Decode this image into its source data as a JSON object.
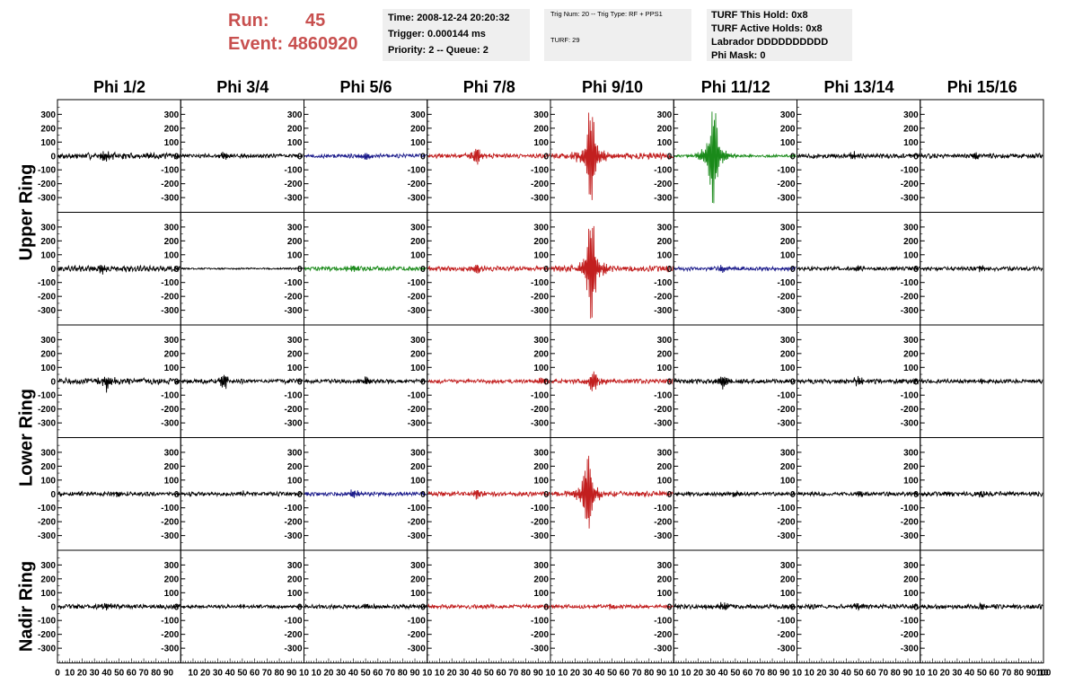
{
  "header": {
    "run_label": "Run:",
    "run_value": "45",
    "event_label": "Event:",
    "event_value": "4860920",
    "info1": [
      "Time: 2008-12-24 20:20:32",
      "Trigger: 0.000144 ms",
      "Priority: 2 -- Queue: 2"
    ],
    "info2": [
      "Trig Num: 20 -- Trig Type: RF + PPS1",
      "TURF: 29"
    ],
    "info3": [
      "TURF This Hold: 0x8",
      "TURF Active Holds: 0x8",
      "Labrador DDDDDDDDDD",
      "Phi Mask: 0"
    ]
  },
  "columns": [
    "Phi 1/2",
    "Phi 3/4",
    "Phi 5/6",
    "Phi 7/8",
    "Phi 9/10",
    "Phi 11/12",
    "Phi 13/14",
    "Phi 15/16"
  ],
  "rows": [
    {
      "label": "Upper Ring",
      "span": [
        0,
        1
      ]
    },
    {
      "label": "Lower Ring",
      "span": [
        2,
        3
      ]
    },
    {
      "label": "Nadir Ring",
      "span": [
        4,
        4
      ]
    }
  ],
  "colors": {
    "black": "#000000",
    "red": "#c21f1f",
    "blue": "#1a1a8a",
    "green": "#1a8a1a",
    "header_red": "#c8504f",
    "box_bg": "#efefef"
  },
  "chart_data": {
    "type": "line",
    "xlim": [
      0,
      100
    ],
    "ylim": [
      -380,
      380
    ],
    "yticks": [
      -300,
      -200,
      -100,
      0,
      100,
      200,
      300
    ],
    "xtick_labels": [
      "0",
      "10",
      "20",
      "30",
      "40",
      "50",
      "60",
      "70",
      "80",
      "90",
      "100"
    ],
    "xtick_labels_inner": [
      "10",
      "20",
      "30",
      "40",
      "50",
      "60",
      "70",
      "80",
      "90",
      "10"
    ],
    "panel_rows": 5,
    "panel_cols": 8,
    "panels": [
      [
        {
          "color": "black",
          "amp": 18,
          "burst": 32,
          "center": 38
        },
        {
          "color": "black",
          "amp": 12,
          "burst": 22,
          "center": 35
        },
        {
          "color": "blue",
          "amp": 12,
          "burst": 22,
          "center": 50
        },
        {
          "color": "red",
          "amp": 14,
          "burst": 60,
          "center": 40
        },
        {
          "color": "red",
          "amp": 20,
          "burst": 330,
          "center": 33
        },
        {
          "color": "green",
          "amp": 8,
          "burst": 330,
          "center": 32
        },
        {
          "color": "black",
          "amp": 14,
          "burst": 28,
          "center": 45
        },
        {
          "color": "black",
          "amp": 14,
          "burst": 20,
          "center": 45
        }
      ],
      [
        {
          "color": "black",
          "amp": 18,
          "burst": 30,
          "center": 35
        },
        {
          "color": "black",
          "amp": 5,
          "burst": 0,
          "center": 50
        },
        {
          "color": "green",
          "amp": 14,
          "burst": 25,
          "center": 40
        },
        {
          "color": "red",
          "amp": 14,
          "burst": 40,
          "center": 40
        },
        {
          "color": "red",
          "amp": 18,
          "burst": 345,
          "center": 33
        },
        {
          "color": "blue",
          "amp": 12,
          "burst": 22,
          "center": 40
        },
        {
          "color": "black",
          "amp": 12,
          "burst": 15,
          "center": 50
        },
        {
          "color": "black",
          "amp": 12,
          "burst": 15,
          "center": 50
        }
      ],
      [
        {
          "color": "black",
          "amp": 18,
          "burst": 45,
          "center": 40
        },
        {
          "color": "black",
          "amp": 14,
          "burst": 45,
          "center": 35
        },
        {
          "color": "black",
          "amp": 12,
          "burst": 25,
          "center": 50
        },
        {
          "color": "red",
          "amp": 12,
          "burst": 30,
          "center": 95
        },
        {
          "color": "red",
          "amp": 14,
          "burst": 70,
          "center": 35
        },
        {
          "color": "black",
          "amp": 14,
          "burst": 40,
          "center": 40
        },
        {
          "color": "black",
          "amp": 14,
          "burst": 30,
          "center": 50
        },
        {
          "color": "black",
          "amp": 12,
          "burst": 15,
          "center": 50
        }
      ],
      [
        {
          "color": "black",
          "amp": 12,
          "burst": 15,
          "center": 50
        },
        {
          "color": "black",
          "amp": 12,
          "burst": 15,
          "center": 50
        },
        {
          "color": "blue",
          "amp": 12,
          "burst": 25,
          "center": 40
        },
        {
          "color": "red",
          "amp": 14,
          "burst": 35,
          "center": 40
        },
        {
          "color": "red",
          "amp": 16,
          "burst": 270,
          "center": 30
        },
        {
          "color": "black",
          "amp": 12,
          "burst": 15,
          "center": 50
        },
        {
          "color": "black",
          "amp": 12,
          "burst": 15,
          "center": 50
        },
        {
          "color": "black",
          "amp": 14,
          "burst": 15,
          "center": 50
        }
      ],
      [
        {
          "color": "black",
          "amp": 14,
          "burst": 20,
          "center": 40
        },
        {
          "color": "black",
          "amp": 10,
          "burst": 10,
          "center": 50
        },
        {
          "color": "black",
          "amp": 12,
          "burst": 10,
          "center": 50
        },
        {
          "color": "red",
          "amp": 12,
          "burst": 10,
          "center": 50
        },
        {
          "color": "red",
          "amp": 12,
          "burst": 10,
          "center": 50
        },
        {
          "color": "black",
          "amp": 14,
          "burst": 22,
          "center": 40
        },
        {
          "color": "black",
          "amp": 14,
          "burst": 15,
          "center": 50
        },
        {
          "color": "black",
          "amp": 14,
          "burst": 15,
          "center": 50
        }
      ]
    ]
  }
}
